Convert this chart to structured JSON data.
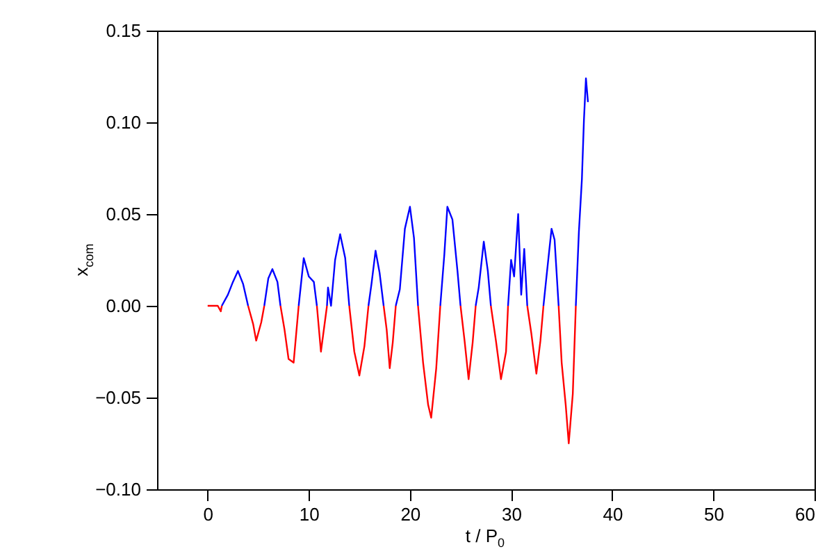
{
  "chart_data": {
    "type": "line",
    "xlabel": "t / P$_{0}$",
    "ylabel": "x$_{com}$",
    "x": [
      0,
      1.0,
      1.3,
      1.4,
      2,
      2.5,
      3.0,
      3.5,
      4.0,
      4.5,
      4.8,
      5.3,
      5.6,
      6.0,
      6.4,
      6.9,
      7.2,
      7.6,
      8.0,
      8.5,
      9.0,
      9.5,
      10.0,
      10.5,
      10.8,
      11.2,
      11.8,
      11.9,
      12.2,
      12.6,
      13.1,
      13.6,
      14.0,
      14.5,
      15.0,
      15.5,
      15.9,
      16.2,
      16.6,
      17.0,
      17.4,
      17.7,
      18.0,
      18.3,
      18.6,
      19.0,
      19.5,
      20.0,
      20.4,
      20.8,
      21.3,
      21.8,
      22.1,
      22.6,
      23.0,
      23.4,
      23.7,
      24.2,
      24.7,
      25.0,
      25.4,
      25.8,
      26.2,
      26.5,
      26.8,
      27.3,
      27.7,
      28.0,
      28.5,
      29.0,
      29.5,
      29.7,
      30.0,
      30.3,
      30.7,
      31.0,
      31.3,
      31.6,
      32.0,
      32.5,
      32.9,
      33.2,
      33.5,
      34.0,
      34.3,
      34.7,
      35.0,
      35.4,
      35.7,
      36.1,
      36.4,
      36.7,
      37.0,
      37.2,
      37.4,
      37.6
    ],
    "series": [
      {
        "color": "#0000ff",
        "values": [
          null,
          null,
          null,
          0,
          0.006,
          0.013,
          0.019,
          0.012,
          0,
          null,
          null,
          null,
          0,
          0.015,
          0.02,
          0.013,
          0,
          null,
          null,
          null,
          0,
          0.026,
          0.016,
          0.013,
          0,
          null,
          0,
          0.01,
          0,
          0.025,
          0.039,
          0.026,
          0,
          null,
          null,
          null,
          0,
          0.012,
          0.03,
          0.018,
          0,
          null,
          null,
          null,
          0,
          0.009,
          0.042,
          0.054,
          0.037,
          0,
          null,
          null,
          null,
          null,
          0,
          0.028,
          0.054,
          0.047,
          0.019,
          0,
          null,
          null,
          null,
          0,
          0.01,
          0.035,
          0.019,
          0,
          null,
          null,
          null,
          0,
          0.025,
          0.016,
          0.05,
          0.006,
          0.031,
          0,
          null,
          null,
          null,
          0,
          0.016,
          0.042,
          0.036,
          0,
          null,
          null,
          null,
          null,
          0,
          0.04,
          0.069,
          0.101,
          0.124,
          0.111
        ]
      },
      {
        "color": "#ff0000",
        "values": [
          0,
          0,
          -0.003,
          0,
          null,
          null,
          null,
          null,
          0,
          -0.01,
          -0.019,
          -0.009,
          0,
          null,
          null,
          null,
          0,
          -0.013,
          -0.029,
          -0.031,
          0,
          null,
          null,
          null,
          0,
          -0.025,
          0,
          null,
          null,
          null,
          null,
          null,
          0,
          -0.025,
          -0.038,
          -0.022,
          0,
          null,
          null,
          null,
          0,
          -0.013,
          -0.034,
          -0.02,
          0,
          null,
          null,
          null,
          null,
          0,
          -0.031,
          -0.054,
          -0.061,
          -0.034,
          0,
          null,
          null,
          null,
          null,
          0,
          -0.019,
          -0.04,
          -0.02,
          0,
          null,
          null,
          null,
          0,
          -0.019,
          -0.04,
          -0.025,
          0,
          null,
          null,
          null,
          null,
          null,
          0,
          -0.015,
          -0.037,
          -0.019,
          0,
          null,
          null,
          null,
          0,
          -0.031,
          -0.054,
          -0.075,
          -0.048,
          0,
          null,
          null,
          null,
          null,
          null
        ]
      }
    ],
    "xlim": [
      -5,
      60
    ],
    "xticks": [
      0,
      10,
      20,
      30,
      40,
      50,
      60
    ],
    "ylim": [
      -0.1,
      0.15
    ],
    "yticks": [
      {
        "value": -0.1,
        "label": "−0.10"
      },
      {
        "value": -0.05,
        "label": "−0.05"
      },
      {
        "value": 0,
        "label": "0.00"
      },
      {
        "value": 0.05,
        "label": "0.05"
      },
      {
        "value": 0.1,
        "label": "0.10"
      },
      {
        "value": 0.15,
        "label": "0.15"
      }
    ],
    "grid": false
  }
}
